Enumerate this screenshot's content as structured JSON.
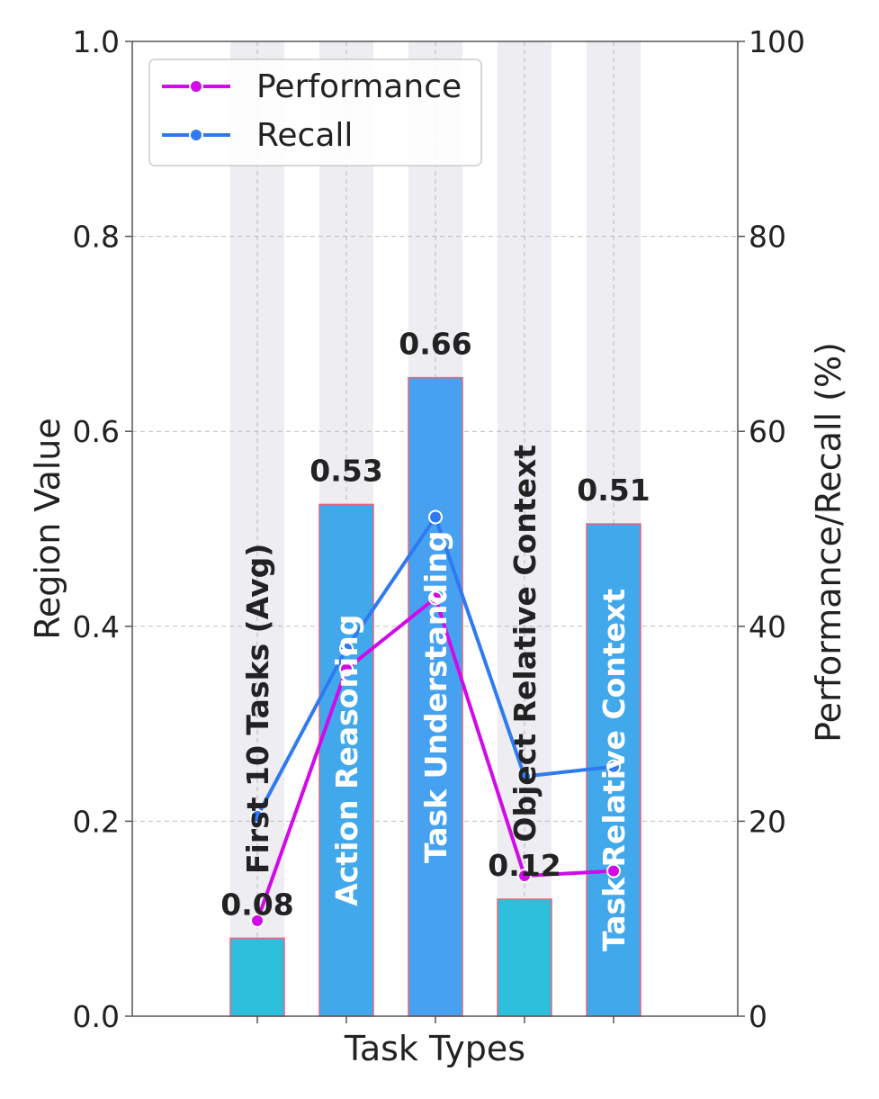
{
  "chart_data": {
    "type": "bar",
    "xlabel": "Task Types",
    "ylabel": "Region Value",
    "y2label": "Performance/Recall (%)",
    "ylim": [
      0,
      1.0
    ],
    "y2lim": [
      0,
      100
    ],
    "yticks": [
      "0.0",
      "0.2",
      "0.4",
      "0.6",
      "0.8",
      "1.0"
    ],
    "y2ticks": [
      "0",
      "20",
      "40",
      "60",
      "80",
      "100"
    ],
    "grid": true,
    "legend_position": "top-left",
    "categories": [
      "First 10 Tasks (Avg)",
      "Action Reasoning",
      "Task Understanding",
      "Object Relative Context",
      "Task Relative Context"
    ],
    "bar_values": [
      0.08,
      0.525,
      0.655,
      0.12,
      0.505
    ],
    "bar_value_labels": [
      "0.08",
      "0.53",
      "0.66",
      "0.12",
      "0.51"
    ],
    "bar_colors": [
      "#2ebfdc",
      "#42a8ec",
      "#46a2f0",
      "#2ebfdc",
      "#42a8ec"
    ],
    "bar_edge_color": "#e8637a",
    "series": [
      {
        "name": "Performance",
        "values": [
          9.8,
          35.6,
          42.9,
          14.4,
          14.9
        ],
        "color": "#d10ae8"
      },
      {
        "name": "Recall",
        "values": [
          20.5,
          37.7,
          51.2,
          24.6,
          25.6
        ],
        "color": "#2f7af0"
      }
    ]
  }
}
